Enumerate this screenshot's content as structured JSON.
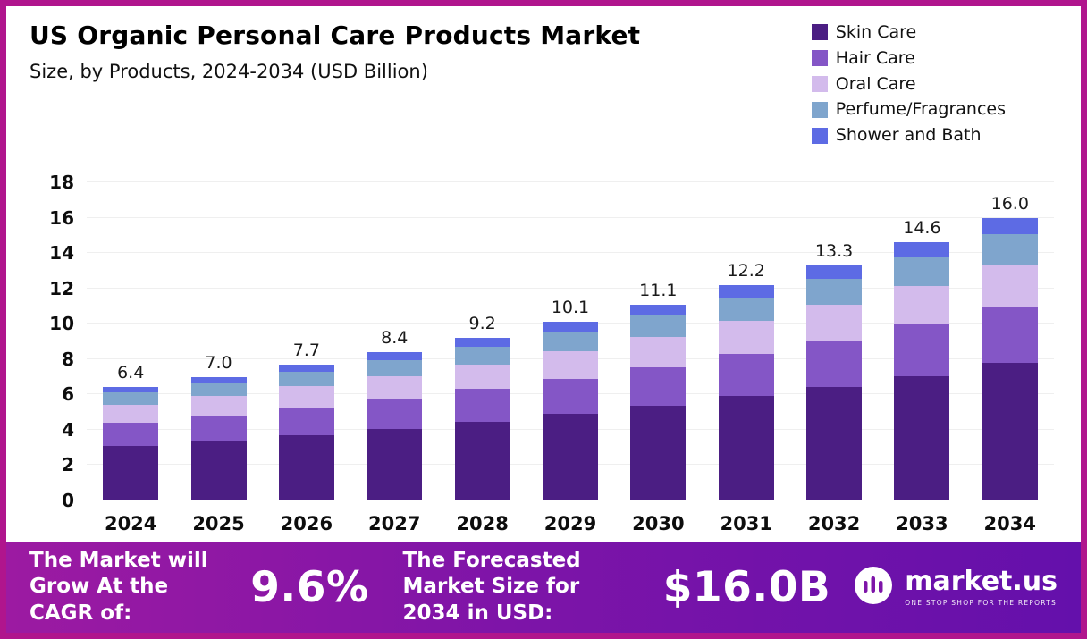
{
  "header": {
    "title": "US Organic Personal Care Products Market",
    "subtitle": "Size, by Products, 2024-2034 (USD Billion)"
  },
  "colors": {
    "border": "#b0158d",
    "footer_gradient_left": "#9c1aa2",
    "footer_gradient_right": "#6410ab"
  },
  "chart_data": {
    "type": "bar",
    "stacked": true,
    "title": "US Organic Personal Care Products Market",
    "subtitle": "Size, by Products, 2024-2034 (USD Billion)",
    "unit": "USD Billion",
    "categories": [
      "2024",
      "2025",
      "2026",
      "2027",
      "2028",
      "2029",
      "2030",
      "2031",
      "2032",
      "2033",
      "2034"
    ],
    "series": [
      {
        "name": "Skin Care",
        "color": "#4b1e83",
        "values": [
          3.1,
          3.4,
          3.7,
          4.05,
          4.45,
          4.9,
          5.35,
          5.9,
          6.4,
          7.05,
          7.8
        ]
      },
      {
        "name": "Hair Care",
        "color": "#8456c6",
        "values": [
          1.3,
          1.4,
          1.55,
          1.7,
          1.85,
          2.0,
          2.2,
          2.4,
          2.65,
          2.9,
          3.1
        ]
      },
      {
        "name": "Oral Care",
        "color": "#d3bbec",
        "values": [
          1.0,
          1.1,
          1.2,
          1.3,
          1.4,
          1.55,
          1.7,
          1.85,
          2.0,
          2.2,
          2.4
        ]
      },
      {
        "name": "Perfume/Fragrances",
        "color": "#7fa5cd",
        "values": [
          0.7,
          0.75,
          0.85,
          0.9,
          1.0,
          1.1,
          1.25,
          1.35,
          1.5,
          1.6,
          1.75
        ]
      },
      {
        "name": "Shower and Bath",
        "color": "#5d6be4",
        "values": [
          0.3,
          0.35,
          0.4,
          0.45,
          0.5,
          0.55,
          0.6,
          0.7,
          0.75,
          0.85,
          0.95
        ]
      }
    ],
    "totals": [
      6.4,
      7.0,
      7.7,
      8.4,
      9.2,
      10.1,
      11.1,
      12.2,
      13.3,
      14.6,
      16.0
    ],
    "ylim": [
      0,
      18
    ],
    "ytick_step": 2,
    "grid": true,
    "legend_position": "top-right"
  },
  "footer": {
    "cagr_label": "The Market will Grow At the CAGR of:",
    "cagr_value": "9.6%",
    "forecast_label": "The Forecasted Market Size for 2034 in USD:",
    "forecast_value": "$16.0B",
    "brand": "market.us",
    "brand_tagline": "ONE STOP SHOP FOR THE REPORTS"
  }
}
